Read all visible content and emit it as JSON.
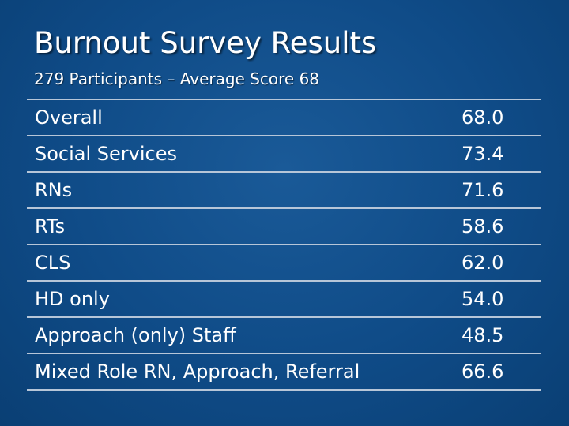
{
  "slide": {
    "title": "Burnout Survey Results",
    "subtitle": "279 Participants – Average Score 68"
  },
  "table": {
    "rows": [
      {
        "label": "Overall",
        "value": "68.0"
      },
      {
        "label": "Social Services",
        "value": "73.4"
      },
      {
        "label": "RNs",
        "value": "71.6"
      },
      {
        "label": "RTs",
        "value": "58.6"
      },
      {
        "label": "CLS",
        "value": "62.0"
      },
      {
        "label": "HD only",
        "value": "54.0"
      },
      {
        "label": "Approach (only) Staff",
        "value": "48.5"
      },
      {
        "label": "Mixed Role RN, Approach, Referral",
        "value": "66.6"
      }
    ]
  },
  "colors": {
    "background": "#0f4b87",
    "text": "#ffffff",
    "rule": "#b7c6d8"
  }
}
